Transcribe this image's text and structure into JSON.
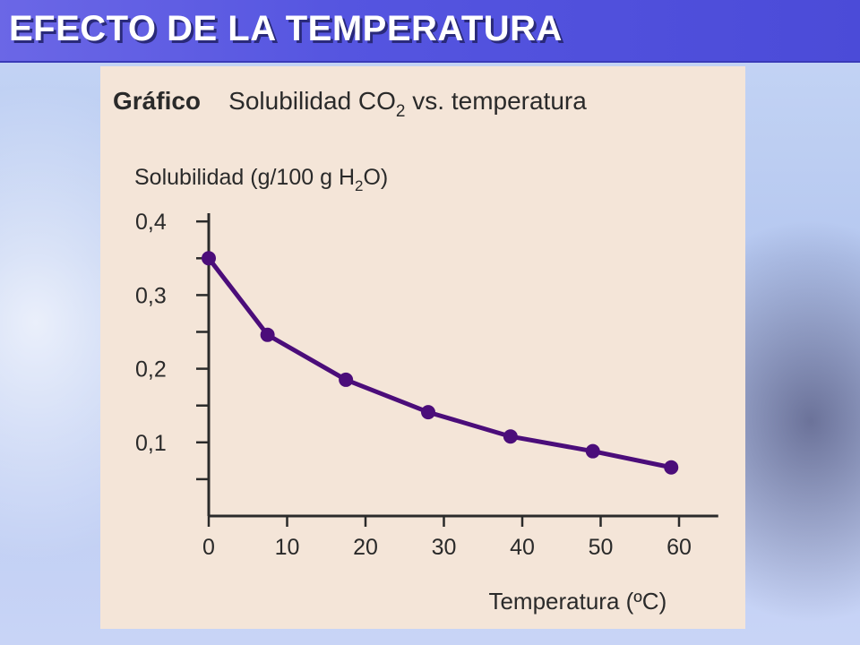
{
  "slide": {
    "title": "EFECTO DE LA TEMPERATURA"
  },
  "colors": {
    "title_bar": "#5555e0",
    "panel_background": "#f4e5d8",
    "series": "#4b0d7a",
    "axis": "#2a2a2a"
  },
  "chart_data": {
    "type": "line",
    "title_prefix": "Gráfico",
    "title_main": "Solubilidad CO",
    "title_sub": "2",
    "title_rest": " vs. temperatura",
    "ylabel_main": "Solubilidad (g/100 g H",
    "ylabel_sub": "2",
    "ylabel_rest": "O)",
    "xlabel": "Temperatura (ºC)",
    "x": [
      0,
      10,
      20,
      30,
      40,
      50,
      60
    ],
    "series": [
      {
        "values": [
          0.35,
          0.246,
          0.185,
          0.141,
          0.108,
          0.088,
          0.066
        ]
      }
    ],
    "x_points": [
      0,
      7.5,
      17.5,
      28,
      38.5,
      49,
      59
    ],
    "xticks": [
      "0",
      "10",
      "20",
      "30",
      "40",
      "50",
      "60"
    ],
    "yticks": [
      "0,1",
      "0,2",
      "0,3",
      "0,4"
    ],
    "ylim": [
      0,
      0.4
    ],
    "xlim": [
      0,
      65
    ],
    "grid": false
  }
}
